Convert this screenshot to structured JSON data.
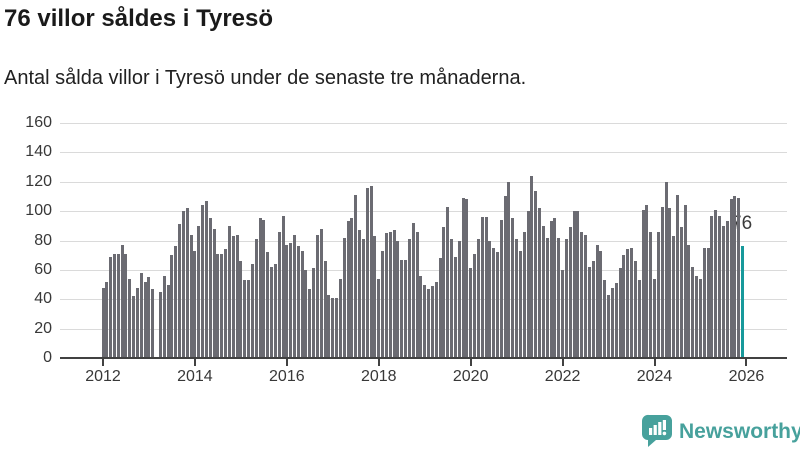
{
  "header": {
    "title": "76 villor såldes i Tyresö",
    "subtitle": "Antal sålda villor i Tyresö under de senaste tre månaderna."
  },
  "annotation": {
    "last_value_label": "76"
  },
  "logo": {
    "text": "Newsworthy",
    "icon": "bar-chart-speech-bubble-icon"
  },
  "colors": {
    "bar": "#6b6b72",
    "highlight": "#17999b",
    "axis": "#414141",
    "grid": "#dadada",
    "text": "#1a1a1a",
    "logo_teal": "#47a19c",
    "background": "#ffffff"
  },
  "chart_data": {
    "type": "bar",
    "title": "76 villor såldes i Tyresö",
    "subtitle": "Antal sålda villor i Tyresö under de senaste tre månaderna.",
    "x_start": "2012-01",
    "x_end": "2025-12",
    "frequency": "monthly",
    "xlabel": "",
    "ylabel": "",
    "ylim": [
      0,
      160
    ],
    "y_ticks": [
      0,
      20,
      40,
      60,
      80,
      100,
      120,
      140,
      160
    ],
    "x_tick_labels": [
      "2012",
      "2014",
      "2016",
      "2018",
      "2020",
      "2022",
      "2024",
      "2026"
    ],
    "grid": true,
    "legend": false,
    "highlight_last": true,
    "last_value": 76,
    "series": [
      {
        "name": "Antal sålda villor (senaste tre månaderna)",
        "values": [
          48,
          52,
          69,
          71,
          71,
          77,
          71,
          54,
          42,
          48,
          58,
          52,
          55,
          47,
          0,
          45,
          56,
          50,
          70,
          76,
          91,
          100,
          102,
          84,
          73,
          90,
          104,
          107,
          95,
          88,
          71,
          71,
          74,
          90,
          83,
          84,
          66,
          53,
          53,
          64,
          81,
          95,
          94,
          72,
          62,
          64,
          86,
          97,
          77,
          78,
          84,
          76,
          73,
          60,
          47,
          61,
          84,
          88,
          66,
          43,
          41,
          41,
          54,
          82,
          93,
          95,
          111,
          87,
          81,
          116,
          117,
          83,
          54,
          73,
          85,
          86,
          87,
          80,
          67,
          67,
          81,
          92,
          86,
          56,
          50,
          47,
          49,
          52,
          68,
          89,
          103,
          81,
          69,
          80,
          109,
          108,
          61,
          71,
          81,
          96,
          96,
          80,
          75,
          72,
          94,
          110,
          120,
          95,
          81,
          73,
          86,
          100,
          124,
          114,
          102,
          90,
          82,
          93,
          95,
          82,
          60,
          81,
          89,
          100,
          100,
          86,
          84,
          62,
          66,
          77,
          73,
          53,
          43,
          48,
          51,
          61,
          70,
          74,
          75,
          66,
          53,
          101,
          104,
          86,
          54,
          86,
          103,
          120,
          102,
          83,
          111,
          89,
          104,
          77,
          62,
          56,
          54,
          75,
          75,
          97,
          101,
          97,
          90,
          93,
          108,
          110,
          109,
          76
        ]
      }
    ]
  }
}
